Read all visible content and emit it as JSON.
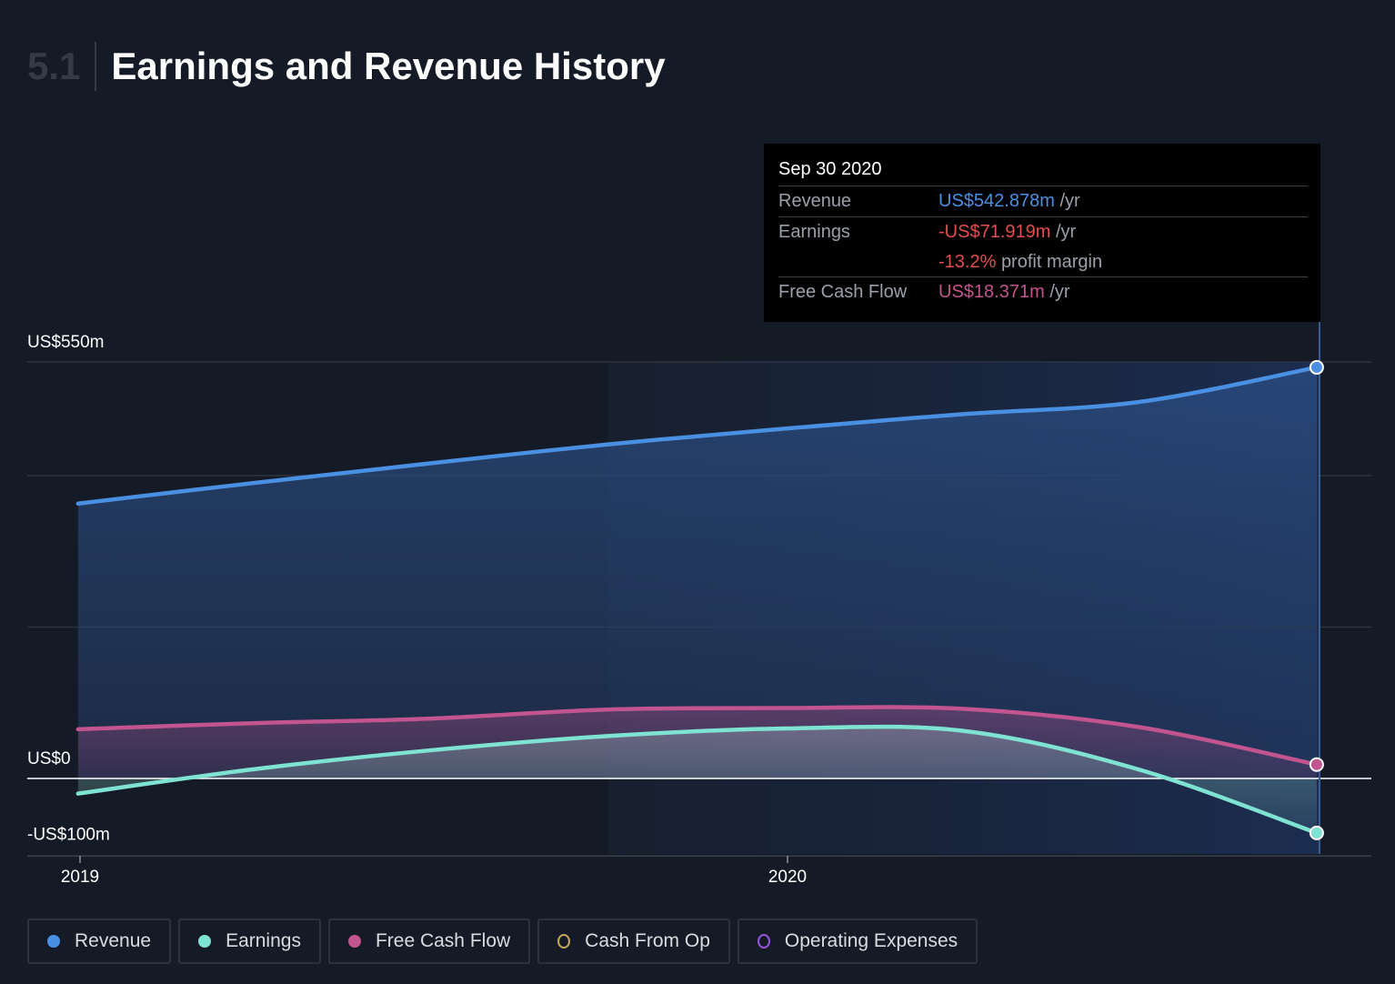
{
  "header": {
    "section_number": "5.1",
    "title": "Earnings and Revenue History"
  },
  "tooltip": {
    "date": "Sep 30 2020",
    "rows": [
      {
        "label": "Revenue",
        "value": "US$542.878m",
        "unit": "/yr",
        "color": "#4a90e2"
      },
      {
        "label": "Earnings",
        "value": "-US$71.919m",
        "unit": "/yr",
        "color": "#e64d4d",
        "sub_value": "-13.2%",
        "sub_label": "profit margin"
      },
      {
        "label": "Free Cash Flow",
        "value": "US$18.371m",
        "unit": "/yr",
        "color": "#c2548f"
      }
    ]
  },
  "legend": [
    {
      "label": "Revenue",
      "color": "#4a90e2",
      "style": "filled"
    },
    {
      "label": "Earnings",
      "color": "#7fe3d3",
      "style": "filled"
    },
    {
      "label": "Free Cash Flow",
      "color": "#c2548f",
      "style": "filled"
    },
    {
      "label": "Cash From Op",
      "color": "#c9a55a",
      "style": "ring"
    },
    {
      "label": "Operating Expenses",
      "color": "#9b55e0",
      "style": "ring"
    }
  ],
  "chart_data": {
    "type": "area",
    "x_ticks": [
      "2019",
      "2020"
    ],
    "y_ticks": [
      "US$550m",
      "US$0",
      "-US$100m"
    ],
    "ylim": [
      -100,
      550
    ],
    "grid": true,
    "x": [
      "2018-12-31",
      "2019-03-31",
      "2019-06-30",
      "2019-09-30",
      "2019-12-31",
      "2020-03-31",
      "2020-06-30",
      "2020-09-30"
    ],
    "series": [
      {
        "name": "Revenue",
        "color": "#4a90e2",
        "values": [
          363,
          390,
          416,
          441,
          462,
          481,
          497,
          542.878
        ]
      },
      {
        "name": "Earnings",
        "color": "#7fe3d3",
        "values": [
          -20,
          12,
          37,
          56,
          66,
          63,
          12,
          -71.919
        ]
      },
      {
        "name": "Free Cash Flow",
        "color": "#c2548f",
        "values": [
          65,
          73,
          79,
          91,
          93,
          92,
          68,
          18.371
        ]
      }
    ]
  }
}
